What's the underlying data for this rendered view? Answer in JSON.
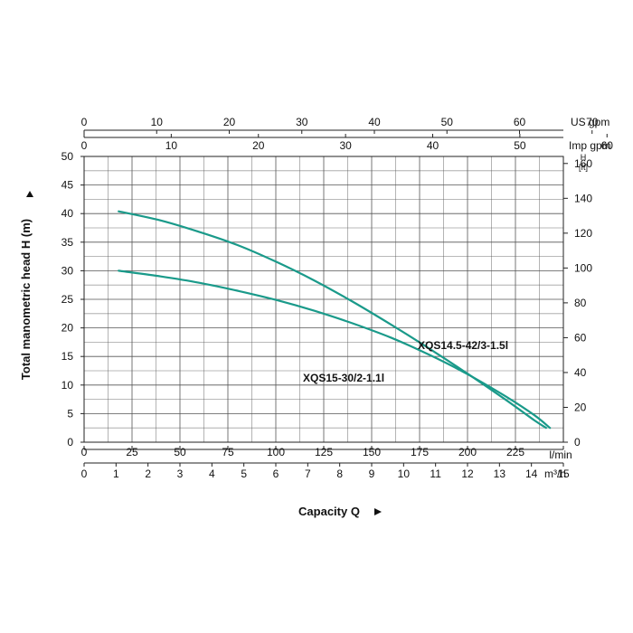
{
  "chart_data": {
    "type": "line",
    "title": "",
    "curve_color": "#1a9a8a",
    "left_axis": {
      "label": "Total manometric head H (m)",
      "ylim": [
        0,
        50
      ],
      "ticks": [
        0,
        5,
        10,
        15,
        20,
        25,
        30,
        35,
        40,
        45,
        50
      ]
    },
    "right_axis": {
      "unit_main": "H",
      "unit_sub": "[ft]",
      "ticks": [
        0,
        20,
        40,
        60,
        80,
        100,
        120,
        140,
        160
      ]
    },
    "bottom_axes": [
      {
        "unit": "l/min",
        "xlim": [
          0,
          250
        ],
        "ticks": [
          0,
          25,
          50,
          75,
          100,
          125,
          150,
          175,
          200,
          225,
          250
        ]
      },
      {
        "unit": "m³/h",
        "xlim": [
          0,
          15
        ],
        "ticks": [
          0,
          1,
          2,
          3,
          4,
          5,
          6,
          7,
          8,
          9,
          10,
          11,
          12,
          13,
          14,
          15
        ]
      }
    ],
    "top_axes": [
      {
        "unit": "US gpm",
        "xlim": [
          0,
          70
        ],
        "ticks": [
          0,
          10,
          20,
          30,
          40,
          50,
          60,
          70
        ]
      },
      {
        "unit": "Imp gpm",
        "xlim": [
          0,
          60
        ],
        "ticks": [
          0,
          10,
          20,
          30,
          40,
          50,
          60
        ]
      }
    ],
    "xlabel": "Capacity Q",
    "x_unit": "l/min",
    "series": [
      {
        "name": "XQS14.5-42/3-1.5l",
        "x": [
          18,
          40,
          60,
          80,
          100,
          120,
          140,
          160,
          180,
          200,
          220,
          235,
          241
        ],
        "y": [
          40.4,
          38.8,
          36.8,
          34.5,
          31.6,
          28.3,
          24.6,
          20.6,
          16.4,
          12.0,
          7.4,
          3.8,
          2.5
        ]
      },
      {
        "name": "XQS15-30/2-1.1l",
        "x": [
          18,
          40,
          60,
          80,
          100,
          120,
          140,
          160,
          180,
          200,
          220,
          235,
          243
        ],
        "y": [
          30.0,
          29.0,
          27.9,
          26.5,
          24.9,
          23.0,
          20.8,
          18.3,
          15.3,
          11.9,
          8.0,
          4.7,
          2.5
        ]
      }
    ],
    "grid": true,
    "legend": "inline"
  }
}
